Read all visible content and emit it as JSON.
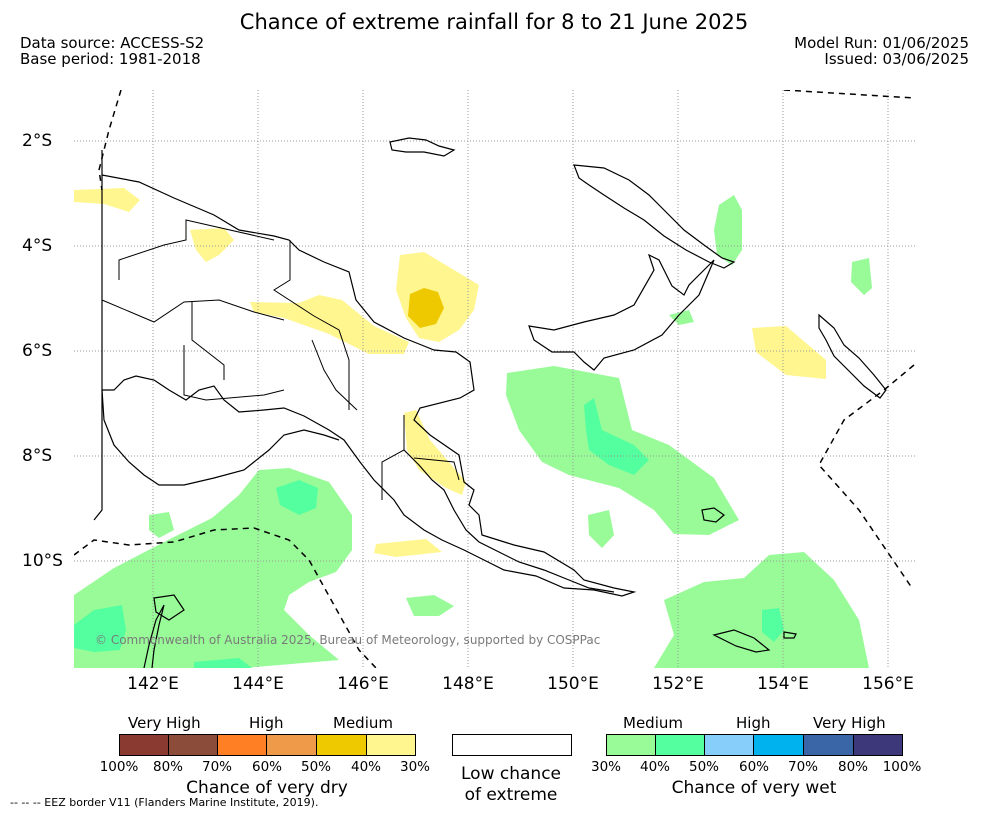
{
  "header": {
    "title": "Chance of extreme rainfall for 8 to 21 June 2025",
    "data_source": "Data source: ACCESS-S2",
    "base_period": "Base period: 1981-2018",
    "model_run": "Model Run: 01/06/2025",
    "issued": "Issued: 03/06/2025"
  },
  "map": {
    "lat_labels": [
      "2°S",
      "4°S",
      "6°S",
      "8°S",
      "10°S"
    ],
    "lon_labels": [
      "142°E",
      "144°E",
      "146°E",
      "148°E",
      "150°E",
      "152°E",
      "154°E",
      "156°E"
    ],
    "copyright": "© Commonwealth of Australia 2025, Bureau of Meteorology, supported by COSPPac",
    "colors": {
      "dry_30": "#fff68f",
      "dry_40": "#eec900",
      "wet_30": "#98fb98",
      "wet_40": "#54ff9f",
      "coast": "#000000",
      "grid": "#9a9a9a"
    }
  },
  "legend": {
    "dry": {
      "categories": [
        "Very High",
        "High",
        "Medium"
      ],
      "ticks": [
        "100%",
        "80%",
        "70%",
        "60%",
        "50%",
        "40%",
        "30%"
      ],
      "colors": [
        "#8b3a32",
        "#8b4c39",
        "#ff7f24",
        "#ee9a49",
        "#eec900",
        "#fff68f"
      ],
      "caption": "Chance of very dry"
    },
    "neutral": {
      "caption_line1": "Low chance",
      "caption_line2": "of extreme",
      "color": "#ffffff"
    },
    "wet": {
      "categories": [
        "Medium",
        "High",
        "Very High"
      ],
      "ticks": [
        "30%",
        "40%",
        "50%",
        "60%",
        "70%",
        "80%",
        "100%"
      ],
      "colors": [
        "#98fb98",
        "#54ff9f",
        "#87cefa",
        "#00b2ee",
        "#3a66a7",
        "#3d3879"
      ],
      "caption": "Chance of very wet"
    }
  },
  "footer": {
    "eez_note": "--  --  -- EEZ border V11 (Flanders Marine Institute, 2019)."
  }
}
